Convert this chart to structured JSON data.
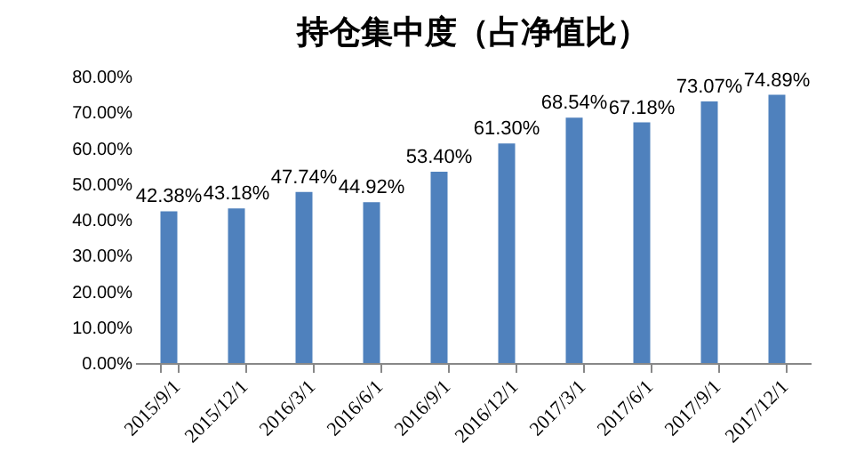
{
  "chart_data": {
    "type": "bar",
    "title": "持仓集中度（占净值比）",
    "categories": [
      "2015/9/1",
      "2015/12/1",
      "2016/3/1",
      "2016/6/1",
      "2016/9/1",
      "2016/12/1",
      "2017/3/1",
      "2017/6/1",
      "2017/9/1",
      "2017/12/1"
    ],
    "values": [
      42.38,
      43.18,
      47.74,
      44.92,
      53.4,
      61.3,
      68.54,
      67.18,
      73.07,
      74.89
    ],
    "value_labels": [
      "42.38%",
      "43.18%",
      "47.74%",
      "44.92%",
      "53.40%",
      "61.30%",
      "68.54%",
      "67.18%",
      "73.07%",
      "74.89%"
    ],
    "color": "#4f81bd",
    "ylim": [
      0,
      80
    ],
    "yticks": [
      {
        "value": 0,
        "label": "0.00%"
      },
      {
        "value": 10,
        "label": "10.00%"
      },
      {
        "value": 20,
        "label": "20.00%"
      },
      {
        "value": 30,
        "label": "30.00%"
      },
      {
        "value": 40,
        "label": "40.00%"
      },
      {
        "value": 50,
        "label": "50.00%"
      },
      {
        "value": 60,
        "label": "60.00%"
      },
      {
        "value": 70,
        "label": "70.00%"
      },
      {
        "value": 80,
        "label": "80.00%"
      }
    ]
  }
}
